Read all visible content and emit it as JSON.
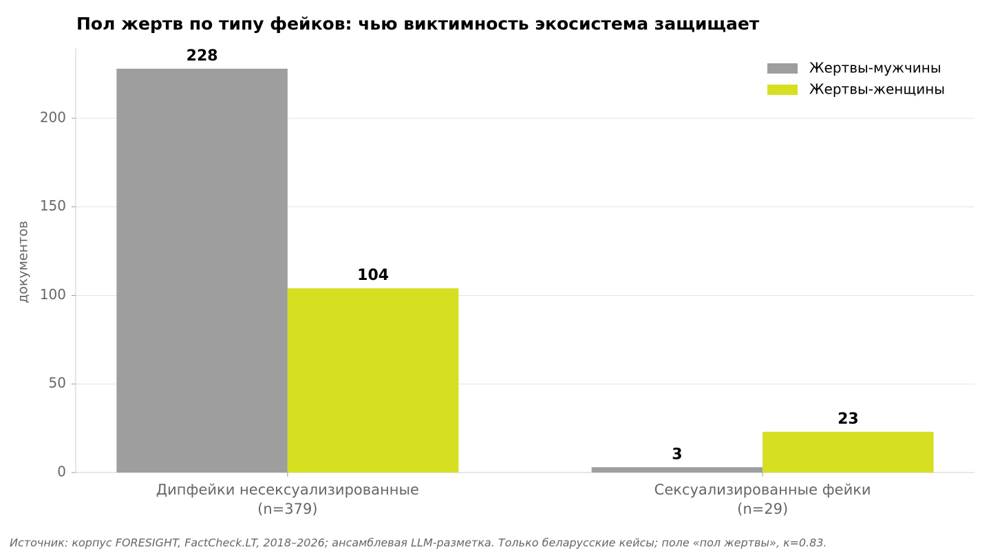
{
  "chart_data": {
    "type": "bar",
    "title": "Пол жертв по типу фейков: чью виктимность экосистема защищает",
    "y_label": "документов",
    "categories": [
      "Дипфейки несексуализированные\n(n=379)",
      "Сексуализированные фейки\n(n=29)"
    ],
    "series": [
      {
        "name": "Жертвы-мужчины",
        "color": "#9e9e9e",
        "values": [
          228,
          3
        ]
      },
      {
        "name": "Жертвы-женщины",
        "color": "#d7df21",
        "values": [
          104,
          23
        ]
      }
    ],
    "ylim": [
      0,
      239.4
    ],
    "yticks": [
      0,
      50,
      100,
      150,
      200
    ],
    "grid": true,
    "legend": "upper right",
    "source": "Источник: корпус FORESIGHT, FactCheck.LT, 2018–2026; ансамблевая LLM-разметка. Только беларусские кейсы; поле «пол жертвы», κ=0.83."
  }
}
